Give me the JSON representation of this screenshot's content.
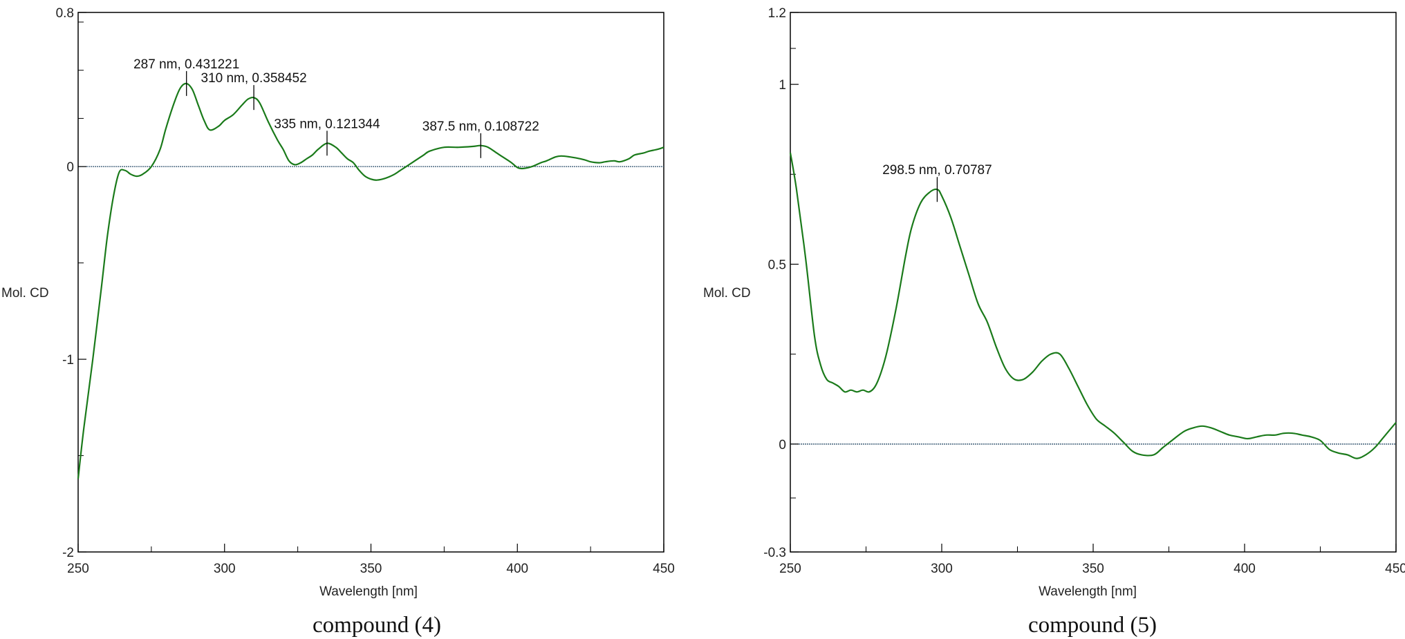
{
  "chart_data": [
    {
      "type": "line",
      "caption": "compound (4)",
      "xlabel": "Wavelength [nm]",
      "ylabel": "Mol. CD",
      "xlim": [
        250,
        450
      ],
      "ylim": [
        -2,
        0.8
      ],
      "x_ticks": [
        250,
        300,
        350,
        400,
        450
      ],
      "x_tick_labels": [
        "250",
        "300",
        "350",
        "400",
        "450"
      ],
      "y_ticks": [
        -2,
        -1,
        0,
        0.8
      ],
      "y_tick_labels": [
        "-2",
        "-1",
        "0",
        "0.8"
      ],
      "baseline": 0,
      "line_color": "#1a7a1a",
      "baseline_color": "#2c4f6b",
      "annotations": [
        {
          "x": 287,
          "y": 0.431221,
          "label": "287 nm, 0.431221"
        },
        {
          "x": 310,
          "y": 0.358452,
          "label": "310 nm, 0.358452"
        },
        {
          "x": 335,
          "y": 0.121344,
          "label": "335 nm, 0.121344"
        },
        {
          "x": 387.5,
          "y": 0.108722,
          "label": "387.5 nm, 0.108722"
        }
      ],
      "series": [
        {
          "x": [
            250,
            252,
            255,
            258,
            260,
            262,
            264,
            266,
            268,
            270,
            272,
            275,
            278,
            280,
            283,
            285,
            287,
            289,
            291,
            293,
            295,
            298,
            300,
            303,
            306,
            308,
            310,
            312,
            315,
            318,
            320,
            322,
            324,
            326,
            328,
            330,
            332,
            335,
            338,
            340,
            342,
            344,
            346,
            348,
            350,
            352,
            355,
            358,
            360,
            363,
            365,
            368,
            370,
            375,
            380,
            385,
            387.5,
            390,
            393,
            395,
            398,
            400,
            402,
            405,
            408,
            410,
            413,
            415,
            418,
            420,
            423,
            425,
            428,
            430,
            433,
            435,
            438,
            440,
            443,
            445,
            448,
            450
          ],
          "y": [
            -1.62,
            -1.35,
            -1.0,
            -0.62,
            -0.36,
            -0.16,
            -0.03,
            -0.02,
            -0.04,
            -0.05,
            -0.04,
            0.0,
            0.09,
            0.2,
            0.34,
            0.41,
            0.431,
            0.4,
            0.32,
            0.24,
            0.19,
            0.21,
            0.24,
            0.27,
            0.32,
            0.35,
            0.358,
            0.33,
            0.23,
            0.14,
            0.09,
            0.03,
            0.01,
            0.02,
            0.04,
            0.06,
            0.09,
            0.121,
            0.1,
            0.07,
            0.04,
            0.02,
            -0.02,
            -0.05,
            -0.065,
            -0.07,
            -0.06,
            -0.04,
            -0.02,
            0.01,
            0.03,
            0.06,
            0.08,
            0.1,
            0.1,
            0.105,
            0.109,
            0.1,
            0.07,
            0.05,
            0.02,
            -0.005,
            -0.01,
            0.0,
            0.02,
            0.03,
            0.05,
            0.055,
            0.05,
            0.045,
            0.035,
            0.025,
            0.02,
            0.025,
            0.03,
            0.025,
            0.04,
            0.06,
            0.07,
            0.08,
            0.09,
            0.1
          ]
        }
      ]
    },
    {
      "type": "line",
      "caption": "compound (5)",
      "xlabel": "Wavelength [nm]",
      "ylabel": "Mol. CD",
      "xlim": [
        250,
        450
      ],
      "ylim": [
        -0.3,
        1.2
      ],
      "x_ticks": [
        250,
        300,
        350,
        400,
        450
      ],
      "x_tick_labels": [
        "250",
        "300",
        "350",
        "400",
        "450"
      ],
      "y_ticks": [
        -0.3,
        0,
        0.5,
        1,
        1.2
      ],
      "y_tick_labels": [
        "-0.3",
        "0",
        "0.5",
        "1",
        "1.2"
      ],
      "baseline": 0,
      "line_color": "#1a7a1a",
      "baseline_color": "#2c4f6b",
      "annotations": [
        {
          "x": 298.5,
          "y": 0.70787,
          "label": "298.5 nm, 0.70787"
        }
      ],
      "series": [
        {
          "x": [
            250,
            252,
            255,
            258,
            260,
            262,
            264,
            266,
            268,
            270,
            272,
            274,
            276,
            278,
            280,
            282,
            285,
            288,
            290,
            293,
            296,
            298.5,
            300,
            303,
            306,
            309,
            312,
            315,
            318,
            321,
            324,
            327,
            330,
            333,
            336,
            339,
            342,
            345,
            348,
            351,
            354,
            357,
            360,
            363,
            366,
            370,
            373,
            376,
            380,
            383,
            386,
            389,
            392,
            395,
            398,
            401,
            404,
            407,
            410,
            413,
            416,
            419,
            422,
            425,
            428,
            431,
            434,
            437,
            440,
            443,
            446,
            450
          ],
          "y": [
            0.81,
            0.71,
            0.52,
            0.3,
            0.22,
            0.18,
            0.17,
            0.16,
            0.145,
            0.15,
            0.145,
            0.15,
            0.145,
            0.16,
            0.2,
            0.26,
            0.38,
            0.52,
            0.6,
            0.67,
            0.7,
            0.708,
            0.69,
            0.63,
            0.55,
            0.47,
            0.39,
            0.34,
            0.27,
            0.21,
            0.18,
            0.18,
            0.2,
            0.23,
            0.25,
            0.25,
            0.21,
            0.16,
            0.11,
            0.07,
            0.05,
            0.03,
            0.005,
            -0.02,
            -0.03,
            -0.03,
            -0.01,
            0.01,
            0.035,
            0.045,
            0.05,
            0.045,
            0.035,
            0.025,
            0.02,
            0.015,
            0.02,
            0.025,
            0.025,
            0.03,
            0.03,
            0.025,
            0.02,
            0.01,
            -0.015,
            -0.025,
            -0.03,
            -0.04,
            -0.03,
            -0.01,
            0.02,
            0.06
          ]
        }
      ]
    }
  ]
}
